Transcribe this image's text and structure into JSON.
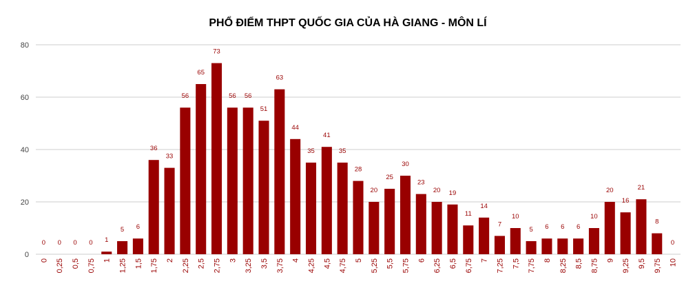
{
  "chart_data": {
    "type": "bar",
    "title": "PHỔ ĐIỂM THPT QUỐC GIA CỦA  HÀ GIANG - MÔN LÍ",
    "categories": [
      "0",
      "0,25",
      "0,5",
      "0,75",
      "1",
      "1,25",
      "1,5",
      "1,75",
      "2",
      "2,25",
      "2,5",
      "2,75",
      "3",
      "3,25",
      "3,5",
      "3,75",
      "4",
      "4,25",
      "4,5",
      "4,75",
      "5",
      "5,25",
      "5,5",
      "5,75",
      "6",
      "6,25",
      "6,5",
      "6,75",
      "7",
      "7,25",
      "7,5",
      "7,75",
      "8",
      "8,25",
      "8,5",
      "8,75",
      "9",
      "9,25",
      "9,5",
      "9,75",
      "10"
    ],
    "values": [
      0,
      0,
      0,
      0,
      1,
      5,
      6,
      36,
      33,
      56,
      65,
      73,
      56,
      56,
      51,
      63,
      44,
      35,
      41,
      35,
      28,
      20,
      25,
      30,
      23,
      20,
      19,
      11,
      14,
      7,
      10,
      5,
      6,
      6,
      6,
      10,
      20,
      16,
      21,
      8,
      0
    ],
    "color": "#990000",
    "ylim": [
      0,
      80
    ],
    "yticks": [
      0,
      20,
      40,
      60,
      80
    ],
    "grid": true
  }
}
